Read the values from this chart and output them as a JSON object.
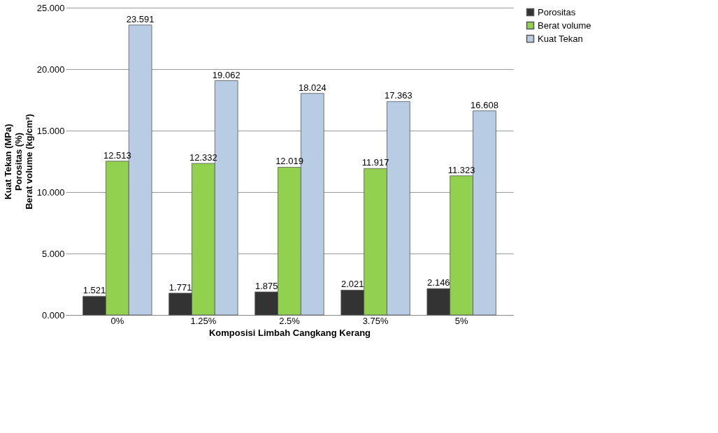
{
  "chart_data": {
    "type": "bar",
    "xlabel": "Komposisi Limbah Cangkang  Kerang",
    "ylabel": "Kuat Tekan (MPa)\nPorositas (%)\nBerat volume  (kg/cm³)",
    "categories": [
      "0%",
      "1.25%",
      "2.5%",
      "3.75%",
      "5%"
    ],
    "series": [
      {
        "name": "Porositas",
        "color": "#333333",
        "values": [
          1.521,
          1.771,
          1.875,
          2.021,
          2.146
        ]
      },
      {
        "name": "Berat volume",
        "color": "#92d050",
        "values": [
          12.513,
          12.332,
          12.019,
          11.917,
          11.323
        ]
      },
      {
        "name": "Kuat Tekan",
        "color": "#b8cce4",
        "values": [
          23.591,
          19.062,
          18.024,
          17.363,
          16.608
        ]
      }
    ],
    "ylim": [
      0,
      25
    ],
    "yticks": [
      {
        "value": 0,
        "label": "0.000"
      },
      {
        "value": 5,
        "label": "5.000"
      },
      {
        "value": 10,
        "label": "10.000"
      },
      {
        "value": 15,
        "label": "15.000"
      },
      {
        "value": 20,
        "label": "20.000"
      },
      {
        "value": 25,
        "label": "25.000"
      }
    ],
    "data_labels": true,
    "grid": "y",
    "legend": "right"
  }
}
